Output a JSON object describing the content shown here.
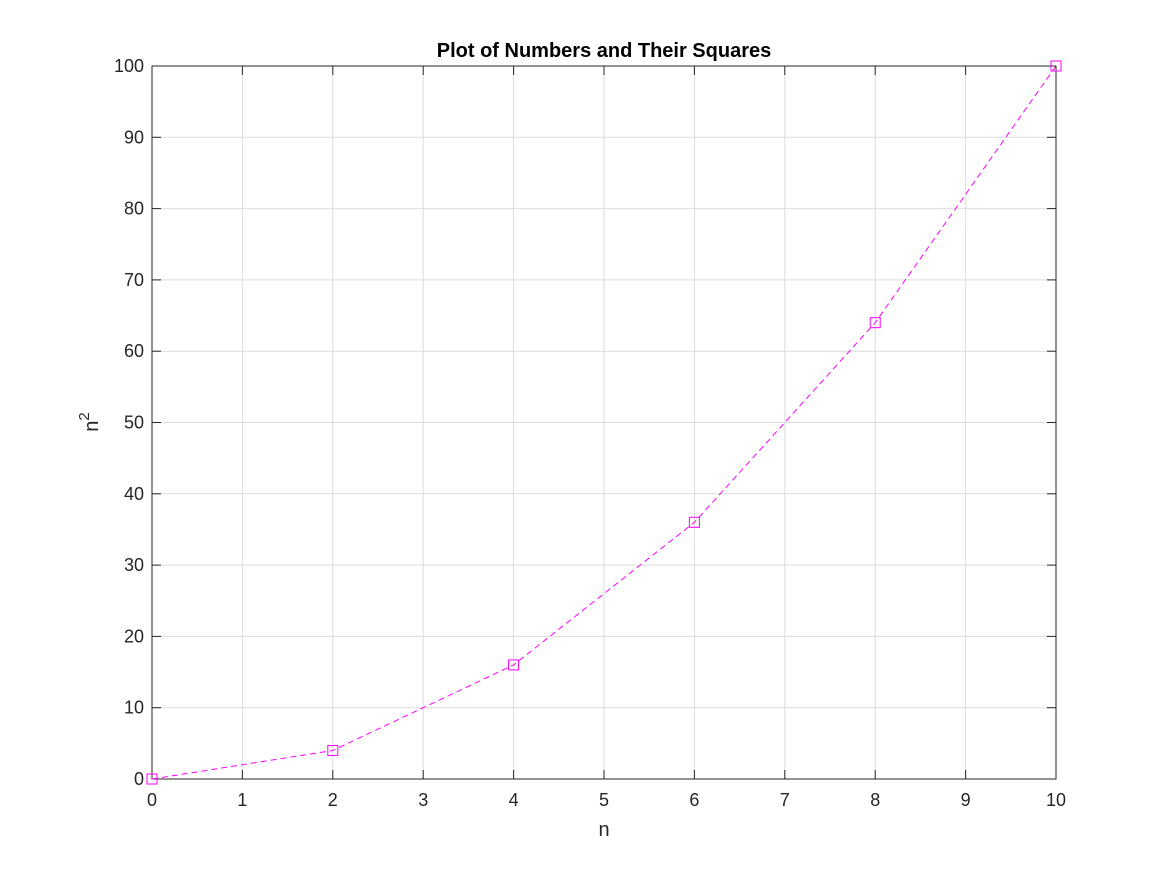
{
  "chart_data": {
    "type": "line",
    "title": "Plot of Numbers and Their Squares",
    "xlabel": "n",
    "ylabel_base": "n",
    "ylabel_sup": "2",
    "xlim": [
      0,
      10
    ],
    "ylim": [
      0,
      100
    ],
    "xticks": [
      0,
      1,
      2,
      3,
      4,
      5,
      6,
      7,
      8,
      9,
      10
    ],
    "yticks": [
      0,
      10,
      20,
      30,
      40,
      50,
      60,
      70,
      80,
      90,
      100
    ],
    "grid": true,
    "series": [
      {
        "x": [
          0,
          2,
          4,
          6,
          8,
          10
        ],
        "y": [
          0,
          4,
          16,
          36,
          64,
          100
        ],
        "color": "#ff00ff",
        "line_style": "dashed",
        "marker": "square"
      }
    ]
  }
}
